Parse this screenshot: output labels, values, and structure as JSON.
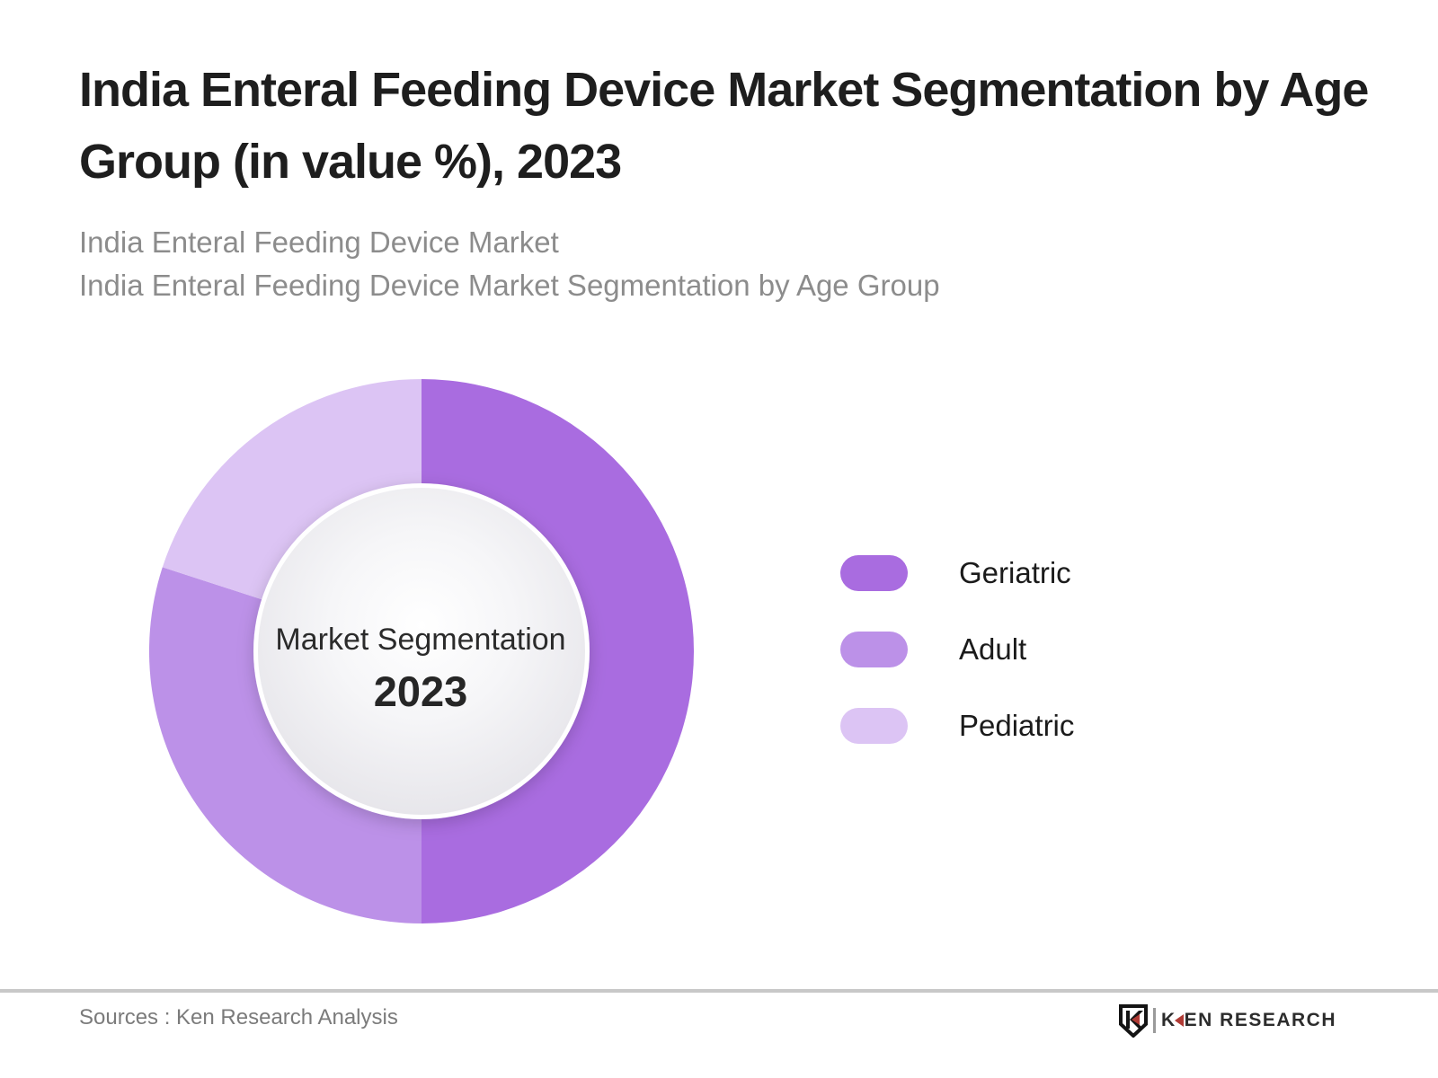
{
  "title_lines": [
    "India Enteral Feeding Device Market Segmentation by Age",
    "Group (in value %), 2023"
  ],
  "subtitle_lines": [
    "India Enteral Feeding Device Market",
    "India Enteral Feeding Device Market Segmentation by Age Group"
  ],
  "donut": {
    "center_label": "Market Segmentation",
    "center_year": "2023"
  },
  "legend": {
    "items": [
      {
        "label": "Geriatric",
        "color": "#a96ce0"
      },
      {
        "label": "Adult",
        "color": "#bc91e8"
      },
      {
        "label": "Pediatric",
        "color": "#dcc4f4"
      }
    ]
  },
  "footer": {
    "sources": "Sources : Ken Research Analysis",
    "logo": {
      "k": "K",
      "rest": "EN RESEARCH"
    }
  },
  "chart_data": {
    "type": "pie",
    "subtype": "donut",
    "title": "India Enteral Feeding Device Market Segmentation by Age Group (in value %), 2023",
    "categories": [
      "Geriatric",
      "Adult",
      "Pediatric"
    ],
    "values": [
      50,
      30,
      20
    ],
    "unit": "%",
    "colors": [
      "#a96ce0",
      "#bc91e8",
      "#dcc4f4"
    ],
    "start_angle_deg": 0,
    "direction": "clockwise",
    "center_label": "Market Segmentation",
    "center_year": "2023",
    "legend_position": "right"
  }
}
